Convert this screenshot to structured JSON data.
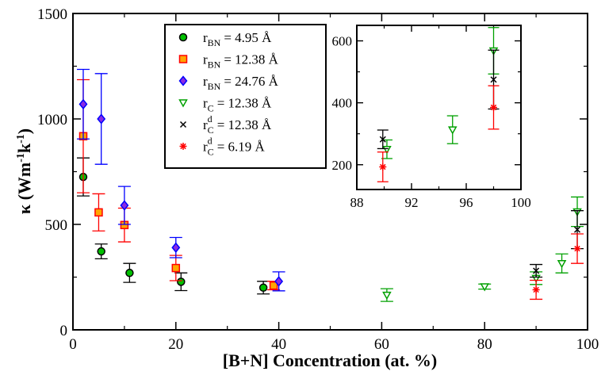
{
  "chart_data": {
    "type": "scatter",
    "xlabel": "[B+N] Concentration (at. %)",
    "ylabel_prefix": "κ (Wm",
    "ylabel_sup1": "-1",
    "ylabel_mid": "k",
    "ylabel_sup2": "-1",
    "ylabel_suffix": ")",
    "xlim": [
      0,
      100
    ],
    "ylim": [
      0,
      1500
    ],
    "xticks": [
      0,
      20,
      40,
      60,
      80,
      100
    ],
    "yticks": [
      0,
      500,
      1000,
      1500
    ],
    "legend": [
      {
        "sym": "r",
        "sub": "BN",
        "sup": "",
        "value": "= 4.95 Å"
      },
      {
        "sym": "r",
        "sub": "BN",
        "sup": "",
        "value": "= 12.38 Å"
      },
      {
        "sym": "r",
        "sub": "BN",
        "sup": "",
        "value": "= 24.76 Å"
      },
      {
        "sym": "r",
        "sub": "C",
        "sup": "",
        "value": "= 12.38 Å"
      },
      {
        "sym": "r",
        "sub": "C",
        "sup": "d",
        "value": "= 12.38 Å"
      },
      {
        "sym": "r",
        "sub": "C",
        "sup": "d",
        "value": "= 6.19 Å"
      }
    ],
    "series": [
      {
        "key": "rBN_4.95",
        "marker": "circle",
        "color": "#00c000",
        "stroke": "#000000",
        "errcolor": "#000000",
        "points": [
          [
            2,
            725,
            90
          ],
          [
            5.5,
            372,
            35
          ],
          [
            11,
            270,
            45
          ],
          [
            21,
            228,
            42
          ],
          [
            37,
            200,
            30
          ]
        ]
      },
      {
        "key": "rBN_12.38",
        "marker": "square",
        "color": "#ffa500",
        "stroke": "#ff0000",
        "errcolor": "#ff0000",
        "points": [
          [
            2,
            918,
            268
          ],
          [
            5,
            557,
            88
          ],
          [
            10,
            497,
            80
          ],
          [
            20,
            293,
            60
          ],
          [
            39,
            210,
            20
          ]
        ]
      },
      {
        "key": "rBN_24.76",
        "marker": "diamond",
        "color": "#8a2be2",
        "stroke": "#0000ff",
        "errcolor": "#0000ff",
        "points": [
          [
            2,
            1070,
            165
          ],
          [
            5.5,
            1000,
            215
          ],
          [
            10,
            590,
            90
          ],
          [
            20,
            390,
            48
          ],
          [
            40,
            230,
            45
          ]
        ]
      },
      {
        "key": "rC_12.38",
        "marker": "triangle-down",
        "color": "#ffffff",
        "stroke": "#00a000",
        "errcolor": "#00a000",
        "points": [
          [
            61,
            165,
            30
          ],
          [
            80,
            205,
            12
          ],
          [
            90,
            245,
            30
          ],
          [
            95,
            315,
            45
          ],
          [
            98,
            560,
            70
          ]
        ]
      },
      {
        "key": "rdC_12.38",
        "marker": "x",
        "color": "#000000",
        "stroke": "#000000",
        "errcolor": "#000000",
        "points": [
          [
            90,
            280,
            30
          ],
          [
            98,
            475,
            90
          ]
        ]
      },
      {
        "key": "rdC_6.19",
        "marker": "star",
        "color": "#ff0000",
        "stroke": "#ff0000",
        "errcolor": "#ff0000",
        "points": [
          [
            90,
            190,
            45
          ],
          [
            98,
            385,
            70
          ]
        ]
      }
    ],
    "inset": {
      "xlim": [
        88,
        100
      ],
      "ylim": [
        120,
        650
      ],
      "xticks": [
        88,
        92,
        96,
        100
      ],
      "yticks": [
        200,
        400,
        600
      ],
      "series": [
        {
          "key": "rC_12.38",
          "points": [
            [
              90.2,
              250,
              30
            ],
            [
              95,
              313,
              45
            ],
            [
              98,
              568,
              75
            ]
          ]
        },
        {
          "key": "rdC_12.38",
          "points": [
            [
              89.9,
              282,
              30
            ],
            [
              98,
              475,
              95
            ]
          ]
        },
        {
          "key": "rdC_6.19",
          "points": [
            [
              89.9,
              193,
              48
            ],
            [
              98,
              385,
              70
            ]
          ]
        }
      ]
    }
  }
}
